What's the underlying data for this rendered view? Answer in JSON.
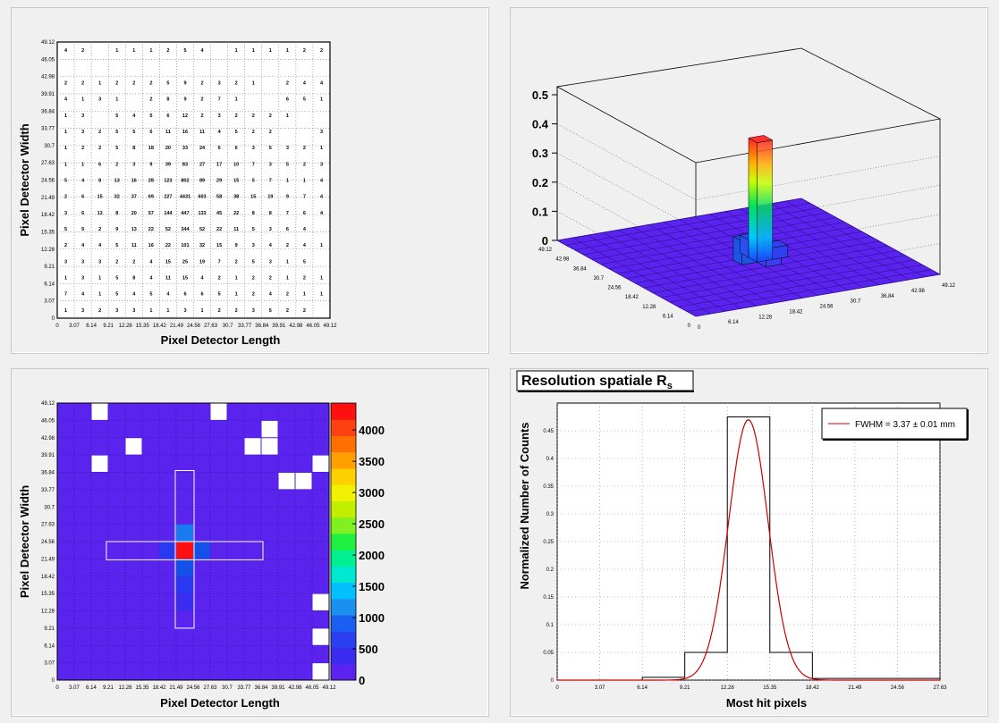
{
  "grid_ticks": [
    "0",
    "3.07",
    "6.14",
    "9.21",
    "12.28",
    "15.35",
    "18.42",
    "21.49",
    "24.56",
    "27.63",
    "30.7",
    "33.77",
    "36.84",
    "39.91",
    "42.98",
    "46.05",
    "49.12"
  ],
  "labels": {
    "length": "Pixel Detector Length",
    "width": "Pixel Detector Width",
    "counts": "Normalized Number of Counts",
    "hit": "Most hit pixels"
  },
  "colors": {
    "background": "#f0f0f0",
    "plot_fill": "#ffffff",
    "heat_base": "#5a23ee",
    "empty_cell": "#ffffff",
    "gauss_line": "#cc0000"
  },
  "chart_data": [
    {
      "type": "table",
      "panel": "counts-map",
      "xlabel": "Pixel Detector Length",
      "ylabel": "Pixel Detector Width",
      "xlim": [
        0,
        49.12
      ],
      "ylim": [
        0,
        49.12
      ],
      "rows_top_to_bottom": [
        [
          "4",
          "2",
          "",
          "1",
          "1",
          "1",
          "2",
          "5",
          "4",
          "",
          "1",
          "1",
          "1",
          "1",
          "2",
          "2"
        ],
        [
          "",
          "",
          "",
          "",
          "",
          "",
          "",
          "",
          "",
          "",
          "",
          "",
          "",
          "",
          "",
          ""
        ],
        [
          "2",
          "2",
          "1",
          "2",
          "2",
          "2",
          "5",
          "9",
          "2",
          "3",
          "2",
          "1",
          "",
          "2",
          "4",
          "4"
        ],
        [
          "4",
          "1",
          "3",
          "1",
          "",
          "2",
          "8",
          "9",
          "2",
          "7",
          "1",
          "",
          "",
          "6",
          "5",
          "1"
        ],
        [
          "1",
          "3",
          "",
          "5",
          "4",
          "5",
          "6",
          "12",
          "2",
          "3",
          "2",
          "2",
          "2",
          "1",
          "",
          ""
        ],
        [
          "1",
          "3",
          "2",
          "5",
          "5",
          "6",
          "11",
          "16",
          "11",
          "4",
          "5",
          "2",
          "2",
          "",
          "",
          "3"
        ],
        [
          "1",
          "2",
          "2",
          "5",
          "8",
          "18",
          "20",
          "33",
          "24",
          "6",
          "6",
          "3",
          "5",
          "3",
          "2",
          "1"
        ],
        [
          "1",
          "1",
          "6",
          "2",
          "3",
          "9",
          "39",
          "83",
          "27",
          "17",
          "10",
          "7",
          "3",
          "5",
          "2",
          "3"
        ],
        [
          "5",
          "4",
          "8",
          "13",
          "16",
          "28",
          "123",
          "802",
          "89",
          "29",
          "15",
          "5",
          "7",
          "1",
          "1",
          "4"
        ],
        [
          "2",
          "6",
          "15",
          "32",
          "37",
          "69",
          "227",
          "4431",
          "603",
          "58",
          "38",
          "15",
          "19",
          "9",
          "7",
          "4"
        ],
        [
          "3",
          "6",
          "13",
          "8",
          "20",
          "57",
          "144",
          "447",
          "133",
          "45",
          "22",
          "8",
          "8",
          "7",
          "6",
          "4"
        ],
        [
          "5",
          "5",
          "2",
          "9",
          "13",
          "22",
          "52",
          "344",
          "52",
          "22",
          "11",
          "5",
          "3",
          "6",
          "4",
          ""
        ],
        [
          "2",
          "4",
          "4",
          "5",
          "11",
          "16",
          "22",
          "101",
          "32",
          "15",
          "9",
          "3",
          "4",
          "2",
          "4",
          "1"
        ],
        [
          "3",
          "3",
          "3",
          "2",
          "2",
          "4",
          "15",
          "25",
          "19",
          "7",
          "2",
          "5",
          "3",
          "1",
          "5",
          ""
        ],
        [
          "1",
          "3",
          "1",
          "5",
          "8",
          "4",
          "11",
          "15",
          "4",
          "2",
          "1",
          "2",
          "2",
          "1",
          "2",
          "1"
        ],
        [
          "7",
          "4",
          "1",
          "5",
          "4",
          "5",
          "4",
          "6",
          "6",
          "5",
          "1",
          "2",
          "4",
          "2",
          "1",
          "1"
        ],
        [
          "1",
          "3",
          "2",
          "3",
          "3",
          "1",
          "1",
          "3",
          "1",
          "2",
          "2",
          "3",
          "5",
          "2",
          "2",
          ""
        ]
      ]
    },
    {
      "type": "lego3d",
      "panel": "3d-view",
      "zlim": [
        0,
        0.5
      ],
      "z_ticks": [
        "0",
        "0.1",
        "0.2",
        "0.3",
        "0.4",
        "0.5"
      ],
      "peak_value": 0.41,
      "axis_ticks_left": [
        "49.12",
        "42.98",
        "36.84",
        "30.7",
        "24.56",
        "18.42",
        "12.28",
        "6.14",
        "0"
      ],
      "axis_ticks_right": [
        "0",
        "6.14",
        "12.28",
        "18.42",
        "24.56",
        "30.7",
        "36.84",
        "42.98",
        "49.12"
      ]
    },
    {
      "type": "heatmap",
      "panel": "colz-map",
      "xlabel": "Pixel Detector Length",
      "ylabel": "Pixel Detector Width",
      "zlim": [
        0,
        4431
      ],
      "palette_ticks": [
        "0",
        "500",
        "1000",
        "1500",
        "2000",
        "2500",
        "3000",
        "3500",
        "4000"
      ],
      "empty_cells": [
        [
          2,
          15
        ],
        [
          9,
          15
        ],
        [
          12,
          14
        ],
        [
          4,
          13
        ],
        [
          11,
          13
        ],
        [
          12,
          13
        ],
        [
          2,
          12
        ],
        [
          15,
          12
        ],
        [
          13,
          11
        ],
        [
          14,
          11
        ],
        [
          15,
          4
        ],
        [
          15,
          2
        ],
        [
          15,
          0
        ]
      ],
      "hot_cells": [
        {
          "col": 7,
          "row": 7,
          "value": 4431
        },
        {
          "col": 7,
          "row": 8,
          "value": 802
        },
        {
          "col": 8,
          "row": 7,
          "value": 603
        },
        {
          "col": 7,
          "row": 6,
          "value": 447
        },
        {
          "col": 7,
          "row": 5,
          "value": 344
        },
        {
          "col": 6,
          "row": 7,
          "value": 227
        },
        {
          "col": 7,
          "row": 4,
          "value": 101
        }
      ]
    },
    {
      "type": "line",
      "panel": "resolution",
      "title_main": "Resolution spatiale R",
      "title_sub": "s",
      "xlabel": "Most hit pixels",
      "ylabel": "Normalized Number of Counts",
      "xlim": [
        0,
        27.63
      ],
      "ylim": [
        0,
        0.5
      ],
      "x_ticks": [
        "0",
        "3.07",
        "6.14",
        "9.21",
        "12.28",
        "15.35",
        "18.42",
        "21.49",
        "24.56",
        "27.63"
      ],
      "y_ticks": [
        "0",
        "0.05",
        "0.1",
        "0.15",
        "0.2",
        "0.25",
        "0.3",
        "0.35",
        "0.4",
        "0.45"
      ],
      "histogram": {
        "edges": [
          0,
          6.14,
          9.21,
          12.28,
          15.35,
          18.42,
          27.63
        ],
        "values": [
          0,
          0.005,
          0.05,
          0.475,
          0.05,
          0.003
        ]
      },
      "gauss": {
        "mean": 13.8,
        "fwhm": 3.37,
        "amplitude": 0.47
      },
      "series": [
        {
          "name": "FWHM = 3.37 ± 0.01 mm"
        }
      ]
    }
  ]
}
